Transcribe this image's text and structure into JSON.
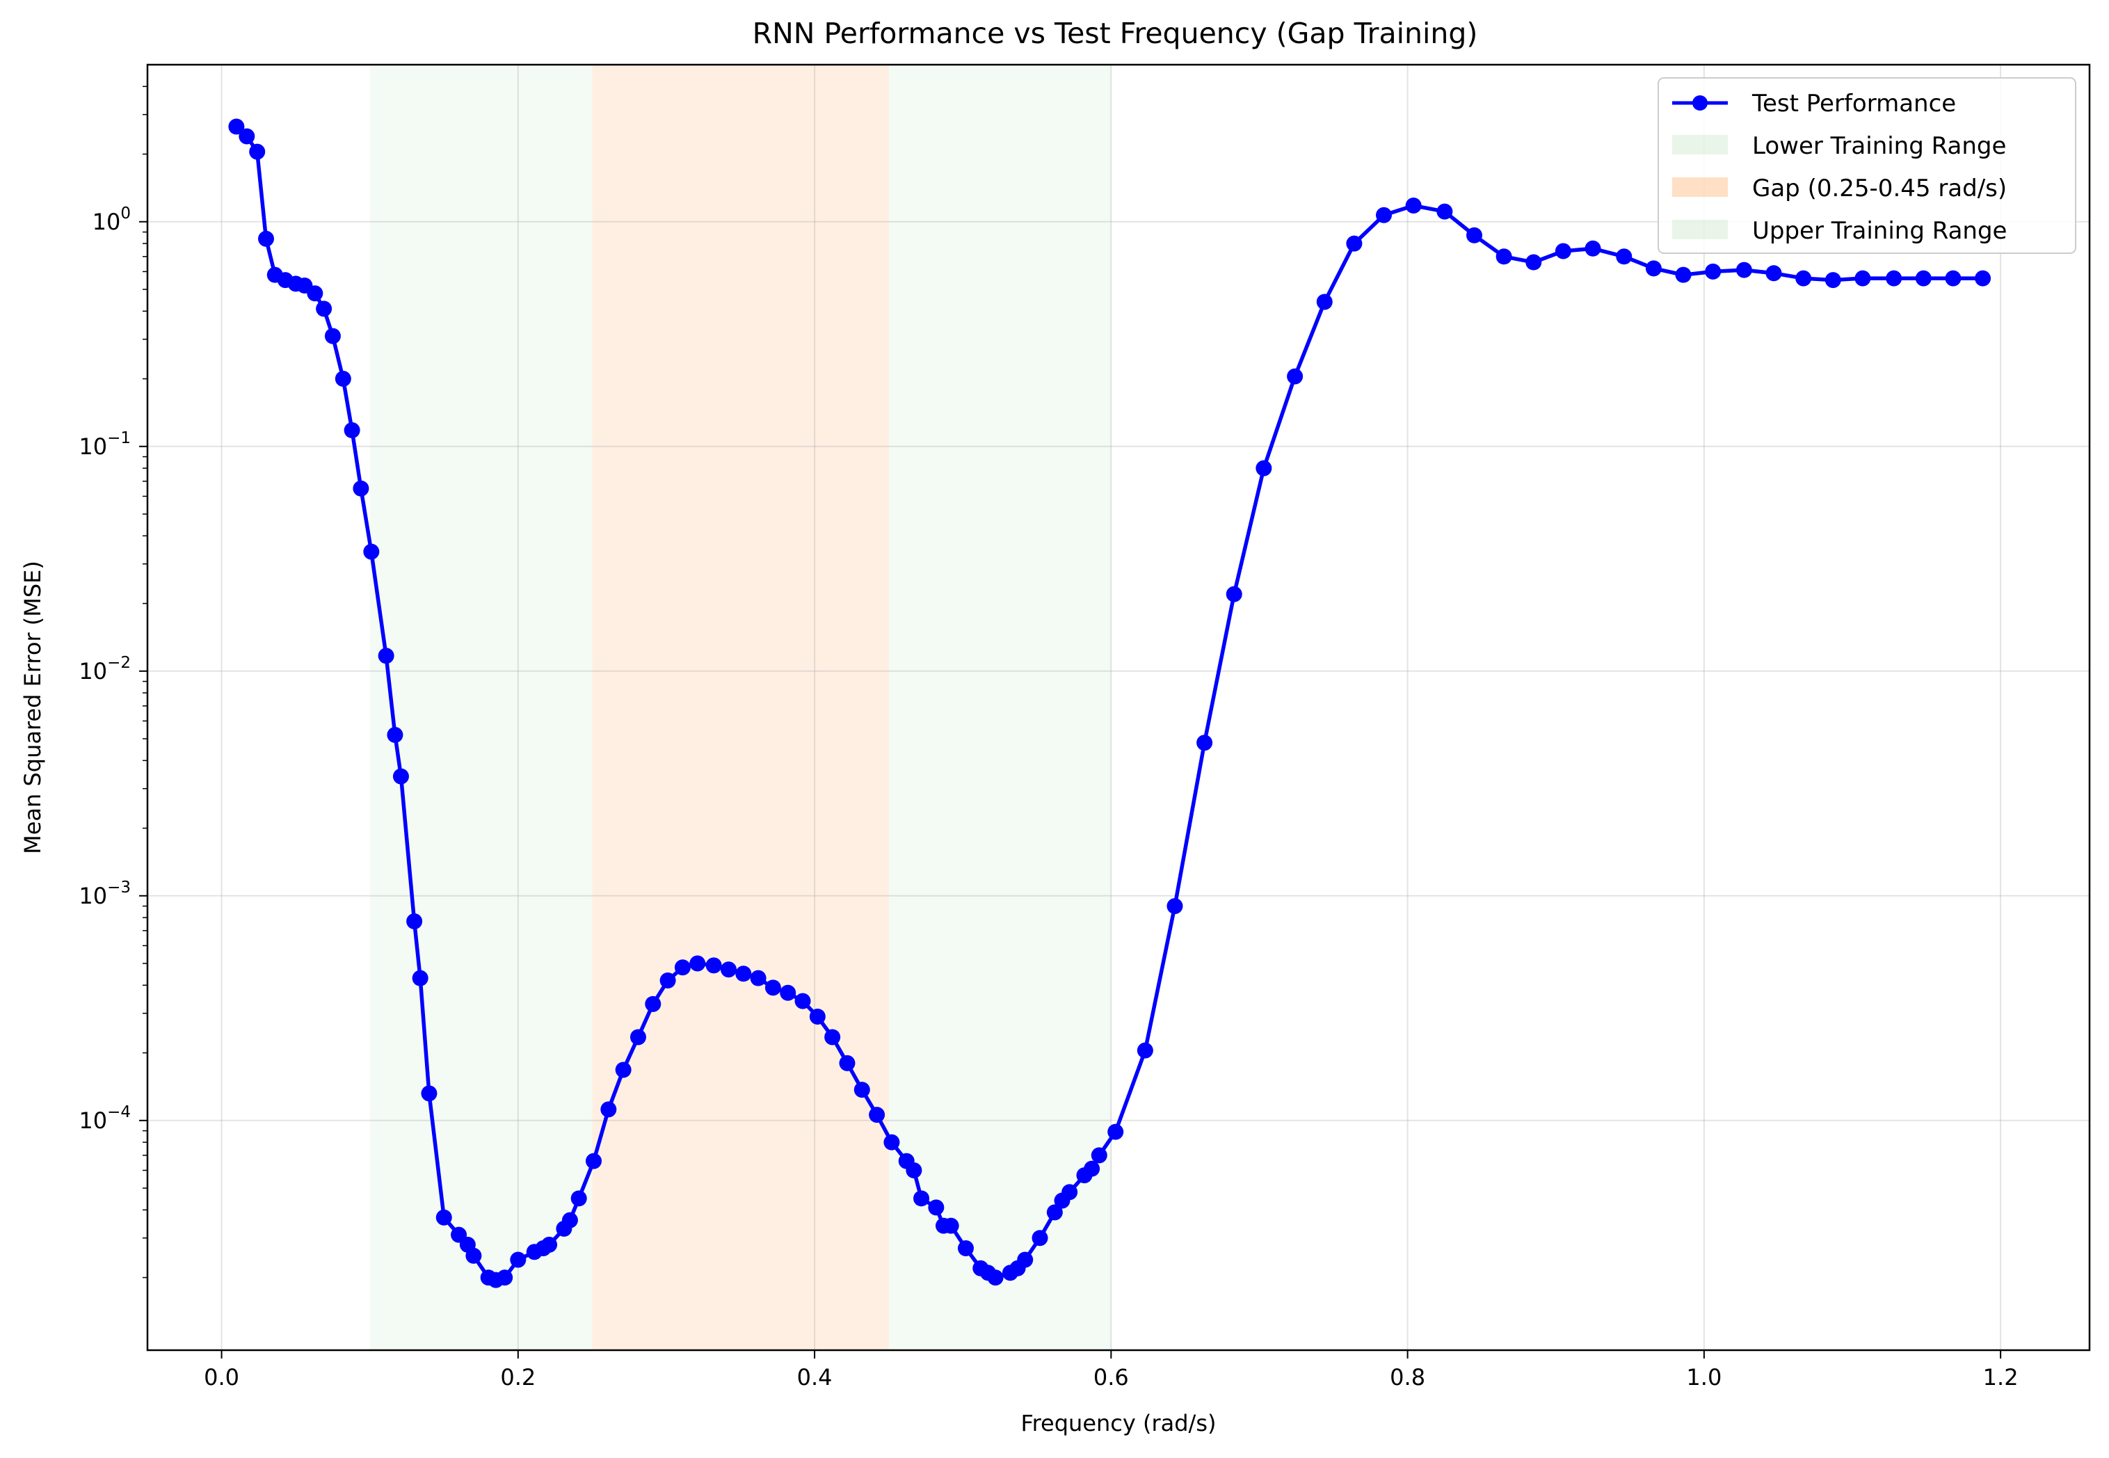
{
  "chart_data": {
    "type": "line",
    "title": "RNN Performance vs Test Frequency (Gap Training)",
    "xlabel": "Frequency (rad/s)",
    "ylabel": "Mean Squared Error (MSE)",
    "xlim": [
      -0.05,
      1.26
    ],
    "ylim": [
      9.5e-06,
      5.0
    ],
    "yscale": "log",
    "grid": true,
    "legend_position": "top-right",
    "x_ticks": [
      0.0,
      0.2,
      0.4,
      0.6,
      0.8,
      1.0,
      1.2
    ],
    "x_tick_labels": [
      "0.0",
      "0.2",
      "0.4",
      "0.6",
      "0.8",
      "1.0",
      "1.2"
    ],
    "y_ticks": [
      0.0001,
      0.001,
      0.01,
      0.1,
      1
    ],
    "y_tick_exponents": [
      "−4",
      "−3",
      "−2",
      "−1",
      "0"
    ],
    "y_tick_base": "10",
    "shaded_regions": [
      {
        "name": "Lower Training Range",
        "x_start": 0.1,
        "x_end": 0.25,
        "color": "#2ca02c",
        "opacity": 0.05
      },
      {
        "name": "Gap (0.25-0.45 rad/s)",
        "x_start": 0.25,
        "x_end": 0.45,
        "color": "#ff7f0e",
        "opacity": 0.12
      },
      {
        "name": "Upper Training Range",
        "x_start": 0.45,
        "x_end": 0.6,
        "color": "#2ca02c",
        "opacity": 0.05
      }
    ],
    "series": [
      {
        "name": "Test Performance",
        "color": "#0000ff",
        "marker": "circle",
        "x": [
          0.01,
          0.017,
          0.024,
          0.03,
          0.036,
          0.043,
          0.05,
          0.056,
          0.063,
          0.069,
          0.075,
          0.082,
          0.088,
          0.094,
          0.101,
          0.111,
          0.117,
          0.121,
          0.13,
          0.134,
          0.14,
          0.15,
          0.16,
          0.166,
          0.17,
          0.18,
          0.185,
          0.191,
          0.2,
          0.211,
          0.217,
          0.221,
          0.231,
          0.235,
          0.241,
          0.251,
          0.261,
          0.271,
          0.281,
          0.291,
          0.301,
          0.311,
          0.321,
          0.332,
          0.342,
          0.352,
          0.362,
          0.372,
          0.382,
          0.392,
          0.402,
          0.412,
          0.422,
          0.432,
          0.442,
          0.452,
          0.462,
          0.467,
          0.472,
          0.482,
          0.487,
          0.492,
          0.502,
          0.512,
          0.517,
          0.522,
          0.532,
          0.537,
          0.542,
          0.552,
          0.562,
          0.567,
          0.572,
          0.582,
          0.587,
          0.592,
          0.603,
          0.623,
          0.643,
          0.663,
          0.683,
          0.703,
          0.724,
          0.744,
          0.764,
          0.784,
          0.804,
          0.825,
          0.845,
          0.865,
          0.885,
          0.905,
          0.925,
          0.946,
          0.966,
          0.986,
          1.006,
          1.027,
          1.047,
          1.067,
          1.087,
          1.107,
          1.128,
          1.148,
          1.168,
          1.188
        ],
        "values": [
          2.65,
          2.4,
          2.05,
          0.84,
          0.58,
          0.55,
          0.53,
          0.52,
          0.48,
          0.41,
          0.31,
          0.2,
          0.118,
          0.065,
          0.034,
          0.0117,
          0.0052,
          0.0034,
          0.00077,
          0.00043,
          0.000132,
          3.7e-05,
          3.1e-05,
          2.8e-05,
          2.5e-05,
          2e-05,
          1.95e-05,
          2e-05,
          2.4e-05,
          2.6e-05,
          2.7e-05,
          2.8e-05,
          3.3e-05,
          3.6e-05,
          4.5e-05,
          6.6e-05,
          0.000112,
          0.000168,
          0.000235,
          0.00033,
          0.00042,
          0.00048,
          0.0005,
          0.00049,
          0.00047,
          0.00045,
          0.00043,
          0.00039,
          0.00037,
          0.00034,
          0.00029,
          0.000235,
          0.00018,
          0.000137,
          0.000106,
          8e-05,
          6.6e-05,
          6e-05,
          4.5e-05,
          4.1e-05,
          3.4e-05,
          3.4e-05,
          2.7e-05,
          2.2e-05,
          2.1e-05,
          2e-05,
          2.1e-05,
          2.2e-05,
          2.4e-05,
          3e-05,
          3.9e-05,
          4.4e-05,
          4.8e-05,
          5.7e-05,
          6.1e-05,
          7e-05,
          8.9e-05,
          0.000205,
          0.0009,
          0.0048,
          0.022,
          0.08,
          0.205,
          0.44,
          0.8,
          1.07,
          1.18,
          1.11,
          0.87,
          0.7,
          0.66,
          0.74,
          0.76,
          0.7,
          0.62,
          0.58,
          0.6,
          0.61,
          0.59,
          0.56,
          0.55,
          0.56,
          0.56,
          0.56,
          0.56,
          0.56
        ]
      }
    ]
  }
}
